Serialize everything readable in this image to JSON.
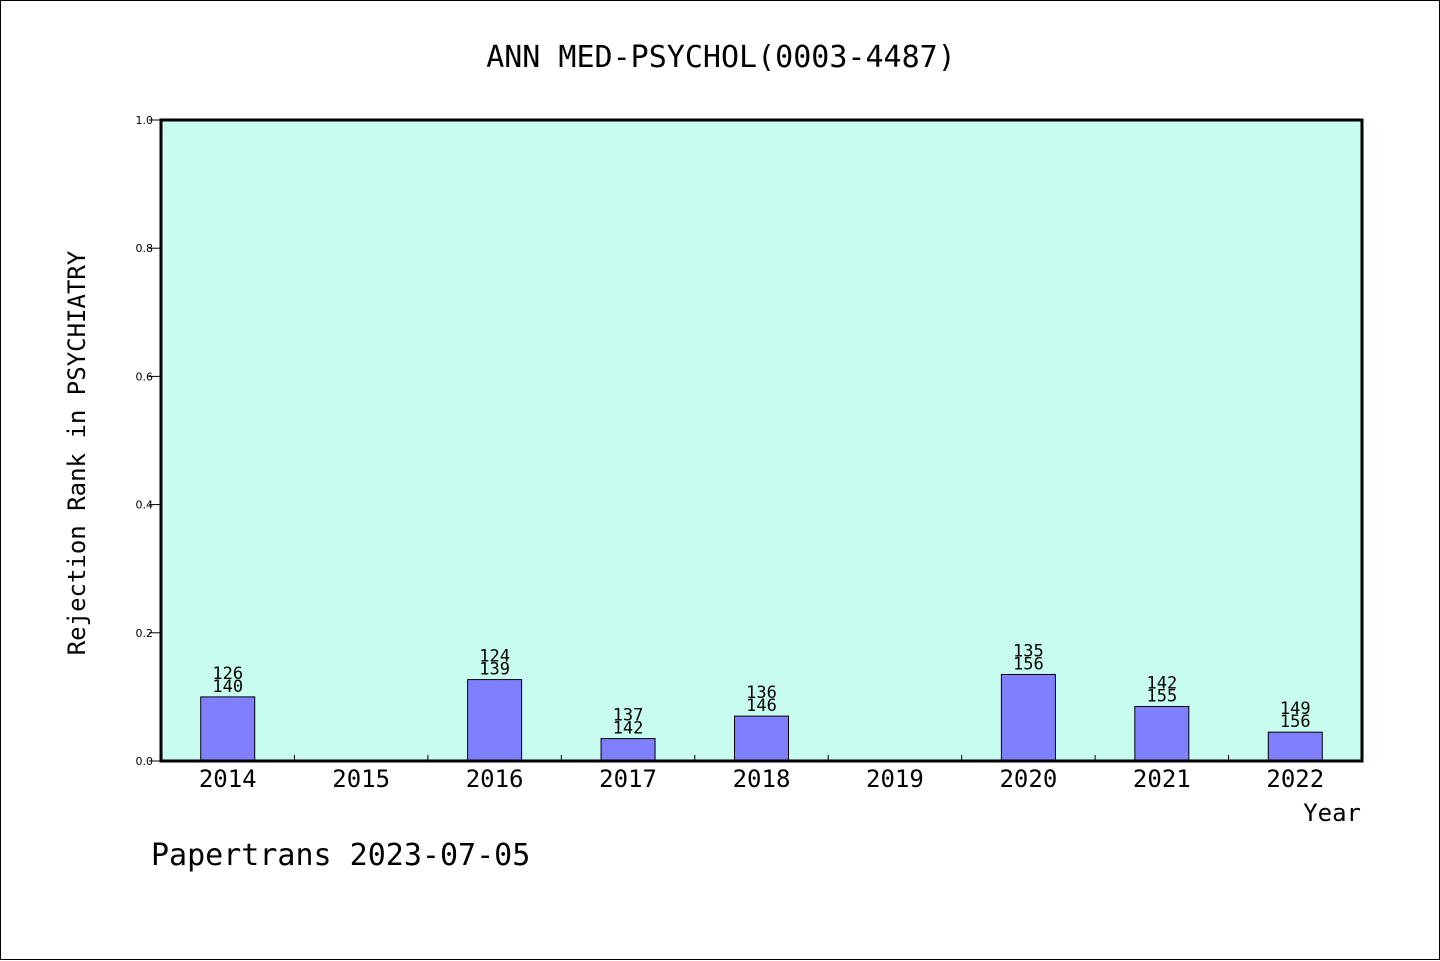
{
  "chart_data": {
    "type": "bar",
    "title": "ANN MED-PSYCHOL(0003-4487)",
    "xlabel": "Year",
    "ylabel": "Rejection Rank in PSYCHIATRY",
    "ylim": [
      0,
      1.0
    ],
    "yticks": [
      "0.0",
      "0.2",
      "0.4",
      "0.6",
      "0.8",
      "1.0"
    ],
    "categories": [
      "2014",
      "2015",
      "2016",
      "2017",
      "2018",
      "2019",
      "2020",
      "2021",
      "2022"
    ],
    "values": [
      0.1,
      null,
      0.127,
      0.035,
      0.07,
      null,
      0.135,
      0.085,
      0.045
    ],
    "label_top": [
      "126",
      "",
      "124",
      "137",
      "136",
      "",
      "135",
      "142",
      "149"
    ],
    "label_bottom": [
      "140",
      "",
      "139",
      "142",
      "146",
      "",
      "156",
      "155",
      "156"
    ],
    "grid": false,
    "colors": {
      "plot_background": "#c8fcee",
      "bar_fill": "#8080ff",
      "axis": "#000000"
    }
  },
  "footer": {
    "text": "Papertrans 2023-07-05"
  }
}
